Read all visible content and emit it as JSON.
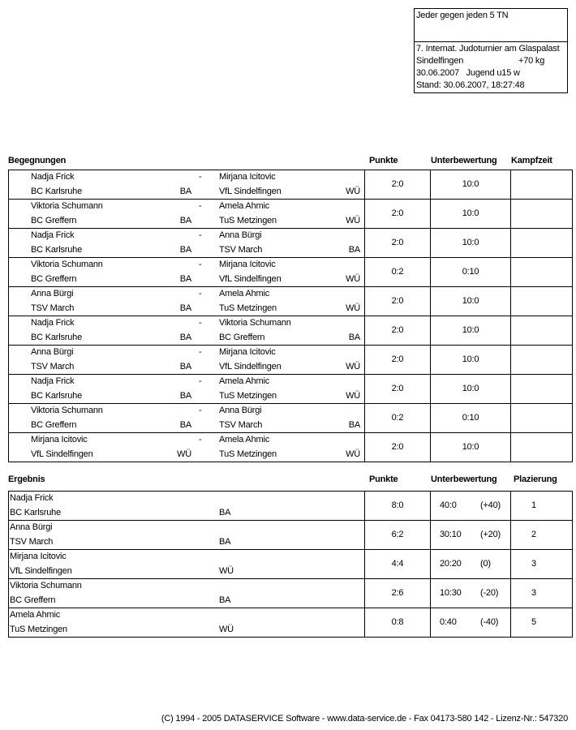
{
  "header_box": {
    "mode": "Jeder gegen jeden 5 TN",
    "tournament": "7. Internat. Judoturnier am Glaspalast",
    "location": "Sindelfingen",
    "weight_class": "+70 kg",
    "date_category": "30.06.2007   Jugend u15 w",
    "status": "Stand: 30.06.2007, 18:27:48"
  },
  "matches": {
    "headers": {
      "title": "Begegnungen",
      "points": "Punkte",
      "sub_score": "Unterbewertung",
      "fight_time": "Kampfzeit"
    },
    "separator": "-",
    "rows": [
      {
        "name1": "Nadja Frick",
        "club1": "BC Karlsruhe",
        "lv1": "BA",
        "name2": "Mirjana Icitovic",
        "club2": "VfL Sindelfingen",
        "lv2": "WÜ",
        "points": "2:0",
        "sub": "10:0",
        "time": ""
      },
      {
        "name1": "Viktoria Schumann",
        "club1": "BC Greffern",
        "lv1": "BA",
        "name2": "Amela Ahmic",
        "club2": "TuS Metzingen",
        "lv2": "WÜ",
        "points": "2:0",
        "sub": "10:0",
        "time": ""
      },
      {
        "name1": "Nadja Frick",
        "club1": "BC Karlsruhe",
        "lv1": "BA",
        "name2": "Anna Bürgi",
        "club2": "TSV March",
        "lv2": "BA",
        "points": "2:0",
        "sub": "10:0",
        "time": ""
      },
      {
        "name1": "Viktoria Schumann",
        "club1": "BC Greffern",
        "lv1": "BA",
        "name2": "Mirjana Icitovic",
        "club2": "VfL Sindelfingen",
        "lv2": "WÜ",
        "points": "0:2",
        "sub": "0:10",
        "time": ""
      },
      {
        "name1": "Anna Bürgi",
        "club1": "TSV March",
        "lv1": "BA",
        "name2": "Amela Ahmic",
        "club2": "TuS Metzingen",
        "lv2": "WÜ",
        "points": "2:0",
        "sub": "10:0",
        "time": ""
      },
      {
        "name1": "Nadja Frick",
        "club1": "BC Karlsruhe",
        "lv1": "BA",
        "name2": "Viktoria Schumann",
        "club2": "BC Greffern",
        "lv2": "BA",
        "points": "2:0",
        "sub": "10:0",
        "time": ""
      },
      {
        "name1": "Anna Bürgi",
        "club1": "TSV March",
        "lv1": "BA",
        "name2": "Mirjana Icitovic",
        "club2": "VfL Sindelfingen",
        "lv2": "WÜ",
        "points": "2:0",
        "sub": "10:0",
        "time": ""
      },
      {
        "name1": "Nadja Frick",
        "club1": "BC Karlsruhe",
        "lv1": "BA",
        "name2": "Amela Ahmic",
        "club2": "TuS Metzingen",
        "lv2": "WÜ",
        "points": "2:0",
        "sub": "10:0",
        "time": ""
      },
      {
        "name1": "Viktoria Schumann",
        "club1": "BC Greffern",
        "lv1": "BA",
        "name2": "Anna Bürgi",
        "club2": "TSV March",
        "lv2": "BA",
        "points": "0:2",
        "sub": "0:10",
        "time": ""
      },
      {
        "name1": "Mirjana Icitovic",
        "club1": "VfL Sindelfingen",
        "lv1": "WÜ",
        "name2": "Amela Ahmic",
        "club2": "TuS Metzingen",
        "lv2": "WÜ",
        "points": "2:0",
        "sub": "10:0",
        "time": ""
      }
    ]
  },
  "results": {
    "headers": {
      "title": "Ergebnis",
      "points": "Punkte",
      "sub_score": "Unterbewertung",
      "placing": "Plazierung"
    },
    "rows": [
      {
        "name": "Nadja Frick",
        "club": "BC Karlsruhe",
        "lv": "BA",
        "points": "8:0",
        "sub": "40:0",
        "diff": "(+40)",
        "place": "1"
      },
      {
        "name": "Anna Bürgi",
        "club": "TSV March",
        "lv": "BA",
        "points": "6:2",
        "sub": "30:10",
        "diff": "(+20)",
        "place": "2"
      },
      {
        "name": "Mirjana Icitovic",
        "club": "VfL Sindelfingen",
        "lv": "WÜ",
        "points": "4:4",
        "sub": "20:20",
        "diff": "(0)",
        "place": "3"
      },
      {
        "name": "Viktoria Schumann",
        "club": "BC Greffern",
        "lv": "BA",
        "points": "2:6",
        "sub": "10:30",
        "diff": "(-20)",
        "place": "3"
      },
      {
        "name": "Amela Ahmic",
        "club": "TuS Metzingen",
        "lv": "WÜ",
        "points": "0:8",
        "sub": "0:40",
        "diff": "(-40)",
        "place": "5"
      }
    ]
  },
  "footer": "(C) 1994 - 2005 DATASERVICE Software - www.data-service.de - Fax 04173-580 142 - Lizenz-Nr.: 547320"
}
